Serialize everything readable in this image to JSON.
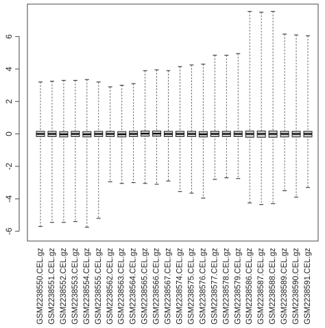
{
  "chart_data": {
    "type": "boxplot",
    "title": "",
    "xlabel": "",
    "ylabel": "",
    "ylim": [
      -6.6,
      8.0
    ],
    "yticks": [
      -6,
      -4,
      -2,
      0,
      2,
      4,
      6
    ],
    "grid": false,
    "categories": [
      "GSM2238550.CEL.gz",
      "GSM2238551.CEL.gz",
      "GSM2238552.CEL.gz",
      "GSM2238553.CEL.gz",
      "GSM2238554.CEL.gz",
      "GSM2238555.CEL.gz",
      "GSM2238562.CEL.gz",
      "GSM2238563.CEL.gz",
      "GSM2238564.CEL.gz",
      "GSM2238565.CEL.gz",
      "GSM2238566.CEL.gz",
      "GSM2238567.CEL.gz",
      "GSM2238574.CEL.gz",
      "GSM2238575.CEL.gz",
      "GSM2238576.CEL.gz",
      "GSM2238577.CEL.gz",
      "GSM2238578.CEL.gz",
      "GSM2238579.CEL.gz",
      "GSM2238586.CEL.gz",
      "GSM2238587.CEL.gz",
      "GSM2238588.CEL.gz",
      "GSM2238589.CEL.gz",
      "GSM2238590.CEL.gz",
      "GSM2238591.CEL.gz"
    ],
    "whisker_max": [
      3.2,
      3.25,
      3.3,
      3.3,
      3.35,
      3.2,
      2.9,
      3.0,
      3.1,
      3.9,
      3.95,
      3.9,
      4.15,
      4.25,
      4.3,
      4.85,
      4.85,
      4.95,
      7.55,
      7.5,
      7.55,
      6.15,
      6.1,
      6.05
    ],
    "q3": [
      0.1,
      0.1,
      0.08,
      0.1,
      0.08,
      0.1,
      0.1,
      0.08,
      0.1,
      0.12,
      0.12,
      0.1,
      0.1,
      0.1,
      0.08,
      0.1,
      0.1,
      0.1,
      0.12,
      0.12,
      0.12,
      0.1,
      0.1,
      0.1
    ],
    "median": [
      0.0,
      0.0,
      -0.02,
      0.0,
      -0.02,
      0.0,
      0.0,
      -0.02,
      0.0,
      0.02,
      0.02,
      0.0,
      0.0,
      0.0,
      -0.02,
      0.0,
      0.0,
      0.0,
      0.0,
      0.0,
      0.0,
      0.0,
      0.0,
      0.0
    ],
    "q1": [
      -0.1,
      -0.1,
      -0.12,
      -0.1,
      -0.12,
      -0.1,
      -0.1,
      -0.12,
      -0.1,
      -0.08,
      -0.08,
      -0.1,
      -0.1,
      -0.1,
      -0.12,
      -0.1,
      -0.1,
      -0.1,
      -0.14,
      -0.14,
      -0.14,
      -0.12,
      -0.12,
      -0.12
    ],
    "whisker_min": [
      -5.7,
      -5.45,
      -5.45,
      -5.4,
      -5.75,
      -5.2,
      -2.95,
      -3.05,
      -3.0,
      -3.05,
      -3.1,
      -2.9,
      -3.55,
      -3.65,
      -3.95,
      -2.8,
      -2.7,
      -2.75,
      -4.25,
      -4.35,
      -4.3,
      -3.5,
      -3.9,
      -3.3
    ]
  }
}
